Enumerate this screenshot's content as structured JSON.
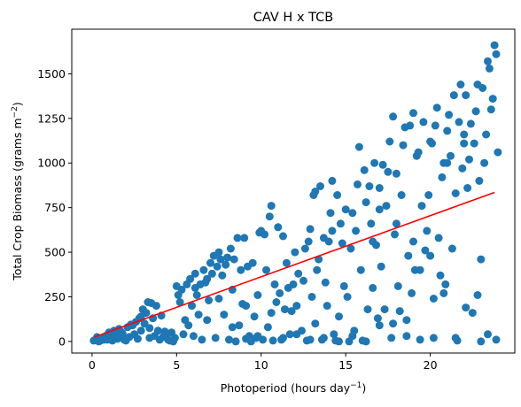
{
  "chart_data": {
    "type": "scatter",
    "title": "CAV H x TCB",
    "xlabel": "Photoperiod (hours day",
    "xlabel_sup": "−1",
    "xlabel_end": ")",
    "ylabel": "Total Crop Biomass (grams m",
    "ylabel_sup": "−2",
    "ylabel_end": ")",
    "xlim": [
      -1.2,
      25.0
    ],
    "ylim": [
      -65,
      1750
    ],
    "xticks": [
      0,
      5,
      10,
      15,
      20
    ],
    "yticks": [
      0,
      250,
      500,
      750,
      1000,
      1250,
      1500
    ],
    "grid": false,
    "colors": {
      "points": "#1f77b4",
      "trend": "#ff0000"
    },
    "trendline": {
      "x": [
        0.15,
        23.8
      ],
      "y": [
        25,
        835
      ]
    },
    "points": [
      [
        0.2,
        10
      ],
      [
        0.3,
        25
      ],
      [
        0.5,
        5
      ],
      [
        0.6,
        15
      ],
      [
        0.8,
        30
      ],
      [
        0.9,
        10
      ],
      [
        1.0,
        50
      ],
      [
        1.1,
        20
      ],
      [
        1.2,
        5
      ],
      [
        1.3,
        60
      ],
      [
        1.4,
        35
      ],
      [
        1.5,
        15
      ],
      [
        1.6,
        70
      ],
      [
        1.8,
        45
      ],
      [
        1.9,
        10
      ],
      [
        2.0,
        5
      ],
      [
        2.1,
        80
      ],
      [
        2.2,
        25
      ],
      [
        2.3,
        95
      ],
      [
        2.5,
        40
      ],
      [
        2.6,
        110
      ],
      [
        2.7,
        15
      ],
      [
        2.8,
        130
      ],
      [
        2.9,
        60
      ],
      [
        3.0,
        180
      ],
      [
        3.1,
        100
      ],
      [
        3.2,
        160
      ],
      [
        3.3,
        220
      ],
      [
        3.4,
        75
      ],
      [
        3.5,
        215
      ],
      [
        3.6,
        130
      ],
      [
        3.7,
        30
      ],
      [
        3.8,
        200
      ],
      [
        3.9,
        60
      ],
      [
        4.0,
        10
      ],
      [
        4.1,
        145
      ],
      [
        4.3,
        55
      ],
      [
        4.4,
        30
      ],
      [
        4.5,
        10
      ],
      [
        4.6,
        5
      ],
      [
        4.7,
        50
      ],
      [
        4.9,
        20
      ],
      [
        5.0,
        310
      ],
      [
        5.1,
        260
      ],
      [
        5.2,
        220
      ],
      [
        5.3,
        290
      ],
      [
        5.5,
        120
      ],
      [
        5.6,
        320
      ],
      [
        5.7,
        90
      ],
      [
        5.8,
        350
      ],
      [
        5.9,
        200
      ],
      [
        6.0,
        30
      ],
      [
        6.1,
        380
      ],
      [
        6.2,
        260
      ],
      [
        6.3,
        150
      ],
      [
        6.4,
        320
      ],
      [
        6.5,
        10
      ],
      [
        6.6,
        400
      ],
      [
        6.7,
        330
      ],
      [
        6.8,
        120
      ],
      [
        6.9,
        230
      ],
      [
        7.0,
        440
      ],
      [
        7.1,
        380
      ],
      [
        7.2,
        480
      ],
      [
        7.3,
        20
      ],
      [
        7.4,
        420
      ],
      [
        7.5,
        500
      ],
      [
        7.6,
        460
      ],
      [
        7.7,
        370
      ],
      [
        7.8,
        150
      ],
      [
        7.9,
        430
      ],
      [
        8.0,
        470
      ],
      [
        8.1,
        10
      ],
      [
        8.2,
        520
      ],
      [
        8.3,
        290
      ],
      [
        8.4,
        460
      ],
      [
        8.5,
        0
      ],
      [
        8.6,
        580
      ],
      [
        8.7,
        90
      ],
      [
        8.8,
        400
      ],
      [
        8.9,
        210
      ],
      [
        9.0,
        580
      ],
      [
        9.1,
        15
      ],
      [
        9.2,
        420
      ],
      [
        9.3,
        30
      ],
      [
        9.4,
        0
      ],
      [
        9.5,
        440
      ],
      [
        9.6,
        140
      ],
      [
        9.7,
        20
      ],
      [
        9.8,
        260
      ],
      [
        9.9,
        610
      ],
      [
        10.0,
        620
      ],
      [
        10.1,
        10
      ],
      [
        10.2,
        600
      ],
      [
        10.3,
        400
      ],
      [
        10.4,
        80
      ],
      [
        10.5,
        700
      ],
      [
        10.6,
        760
      ],
      [
        10.7,
        5
      ],
      [
        10.8,
        320
      ],
      [
        10.9,
        220
      ],
      [
        11.0,
        640
      ],
      [
        11.1,
        270
      ],
      [
        11.2,
        10
      ],
      [
        11.3,
        590
      ],
      [
        11.4,
        180
      ],
      [
        11.5,
        440
      ],
      [
        11.6,
        300
      ],
      [
        11.7,
        40
      ],
      [
        11.8,
        170
      ],
      [
        11.9,
        320
      ],
      [
        12.0,
        500
      ],
      [
        12.1,
        200
      ],
      [
        12.2,
        380
      ],
      [
        12.4,
        60
      ],
      [
        12.5,
        340
      ],
      [
        12.6,
        520
      ],
      [
        12.7,
        5
      ],
      [
        12.8,
        560
      ],
      [
        12.9,
        630
      ],
      [
        13.0,
        250
      ],
      [
        13.1,
        820
      ],
      [
        13.2,
        100
      ],
      [
        13.3,
        400
      ],
      [
        13.4,
        460
      ],
      [
        13.5,
        870
      ],
      [
        13.6,
        10
      ],
      [
        13.7,
        580
      ],
      [
        13.8,
        330
      ],
      [
        13.9,
        200
      ],
      [
        14.0,
        560
      ],
      [
        14.1,
        720
      ],
      [
        14.2,
        900
      ],
      [
        14.3,
        40
      ],
      [
        14.4,
        5
      ],
      [
        14.5,
        820
      ],
      [
        14.6,
        140
      ],
      [
        14.7,
        660
      ],
      [
        14.8,
        550
      ],
      [
        14.9,
        310
      ],
      [
        15.0,
        740
      ],
      [
        15.1,
        250
      ],
      [
        15.2,
        0
      ],
      [
        15.3,
        520
      ],
      [
        15.4,
        720
      ],
      [
        15.5,
        60
      ],
      [
        15.6,
        620
      ],
      [
        15.7,
        880
      ],
      [
        15.8,
        1090
      ],
      [
        15.9,
        400
      ],
      [
        16.0,
        5
      ],
      [
        16.1,
        960
      ],
      [
        16.2,
        780
      ],
      [
        16.3,
        180
      ],
      [
        16.4,
        870
      ],
      [
        16.5,
        660
      ],
      [
        16.6,
        300
      ],
      [
        16.7,
        1000
      ],
      [
        16.8,
        540
      ],
      [
        16.9,
        130
      ],
      [
        17.0,
        860
      ],
      [
        17.1,
        420
      ],
      [
        17.2,
        990
      ],
      [
        17.3,
        180
      ],
      [
        17.4,
        760
      ],
      [
        17.5,
        950
      ],
      [
        17.6,
        1120
      ],
      [
        17.7,
        20
      ],
      [
        17.8,
        1260
      ],
      [
        17.9,
        600
      ],
      [
        18.0,
        940
      ],
      [
        18.1,
        310
      ],
      [
        18.2,
        170
      ],
      [
        18.3,
        820
      ],
      [
        18.4,
        1100
      ],
      [
        18.5,
        1200
      ],
      [
        18.6,
        30
      ],
      [
        18.7,
        480
      ],
      [
        18.8,
        1210
      ],
      [
        18.9,
        270
      ],
      [
        19.0,
        1280
      ],
      [
        19.1,
        400
      ],
      [
        19.2,
        1040
      ],
      [
        19.3,
        1060
      ],
      [
        19.4,
        10
      ],
      [
        19.5,
        760
      ],
      [
        19.6,
        1230
      ],
      [
        19.7,
        510
      ],
      [
        19.8,
        620
      ],
      [
        19.9,
        820
      ],
      [
        20.0,
        480
      ],
      [
        20.1,
        1110
      ],
      [
        20.2,
        20
      ],
      [
        20.3,
        1210
      ],
      [
        20.4,
        1310
      ],
      [
        20.5,
        580
      ],
      [
        20.6,
        370
      ],
      [
        20.7,
        920
      ],
      [
        20.8,
        1000
      ],
      [
        20.9,
        320
      ],
      [
        21.0,
        1180
      ],
      [
        21.1,
        1270
      ],
      [
        21.2,
        1040
      ],
      [
        21.3,
        520
      ],
      [
        21.4,
        1380
      ],
      [
        21.5,
        830
      ],
      [
        21.6,
        5
      ],
      [
        21.7,
        1230
      ],
      [
        21.8,
        1440
      ],
      [
        21.9,
        970
      ],
      [
        22.0,
        1160
      ],
      [
        22.1,
        1380
      ],
      [
        22.2,
        860
      ],
      [
        22.3,
        1020
      ],
      [
        22.4,
        1220
      ],
      [
        22.5,
        160
      ],
      [
        22.6,
        1110
      ],
      [
        22.7,
        1290
      ],
      [
        22.8,
        1440
      ],
      [
        22.9,
        900
      ],
      [
        23.0,
        0
      ],
      [
        23.1,
        1420
      ],
      [
        23.2,
        1000
      ],
      [
        23.3,
        1160
      ],
      [
        23.4,
        1570
      ],
      [
        23.5,
        1530
      ],
      [
        23.6,
        1300
      ],
      [
        23.7,
        1360
      ],
      [
        23.8,
        1660
      ],
      [
        23.9,
        1610
      ],
      [
        24.0,
        1060
      ],
      [
        0.1,
        5
      ],
      [
        0.4,
        0
      ],
      [
        0.7,
        10
      ],
      [
        1.2,
        40
      ],
      [
        1.7,
        55
      ],
      [
        2.4,
        90
      ],
      [
        2.9,
        140
      ],
      [
        3.4,
        20
      ],
      [
        4.2,
        25
      ],
      [
        4.8,
        0
      ],
      [
        5.4,
        40
      ],
      [
        6.1,
        300
      ],
      [
        6.8,
        350
      ],
      [
        7.5,
        240
      ],
      [
        8.3,
        80
      ],
      [
        9.1,
        200
      ],
      [
        9.8,
        30
      ],
      [
        10.6,
        160
      ],
      [
        11.3,
        20
      ],
      [
        12.1,
        40
      ],
      [
        12.9,
        10
      ],
      [
        13.7,
        20
      ],
      [
        14.6,
        0
      ],
      [
        15.4,
        30
      ],
      [
        16.2,
        0
      ],
      [
        17.0,
        90
      ],
      [
        17.8,
        100
      ],
      [
        18.6,
        120
      ],
      [
        19.4,
        400
      ],
      [
        20.2,
        240
      ],
      [
        20.8,
        270
      ],
      [
        21.5,
        20
      ],
      [
        22.1,
        190
      ],
      [
        22.8,
        260
      ],
      [
        23.4,
        40
      ],
      [
        23.9,
        10
      ],
      [
        13.2,
        840
      ],
      [
        14.2,
        620
      ],
      [
        16.6,
        560
      ],
      [
        17.0,
        740
      ],
      [
        18.0,
        660
      ],
      [
        19.0,
        560
      ],
      [
        20.0,
        1120
      ],
      [
        21.0,
        1000
      ],
      [
        22.0,
        1110
      ],
      [
        23.0,
        460
      ]
    ]
  }
}
